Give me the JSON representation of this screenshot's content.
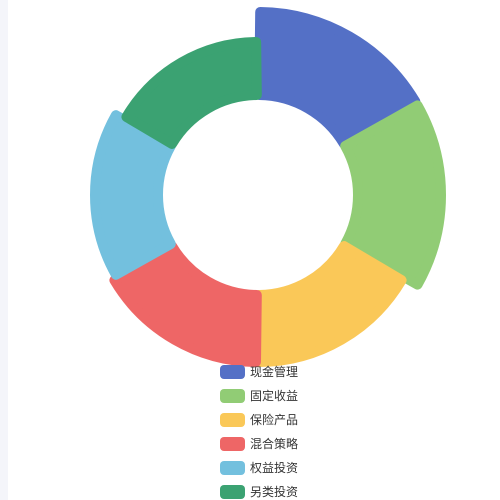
{
  "chart_data": {
    "type": "pie",
    "title": "",
    "legend_position": "bottom",
    "categories": [
      "现金管理",
      "固定收益",
      "保险产品",
      "混合策略",
      "权益投资",
      "另类投资"
    ],
    "values": [
      1,
      1,
      1,
      1,
      1,
      1
    ],
    "colors": [
      "#5470c6",
      "#91cc75",
      "#fac858",
      "#ee6666",
      "#73c0de",
      "#3ba272"
    ]
  }
}
